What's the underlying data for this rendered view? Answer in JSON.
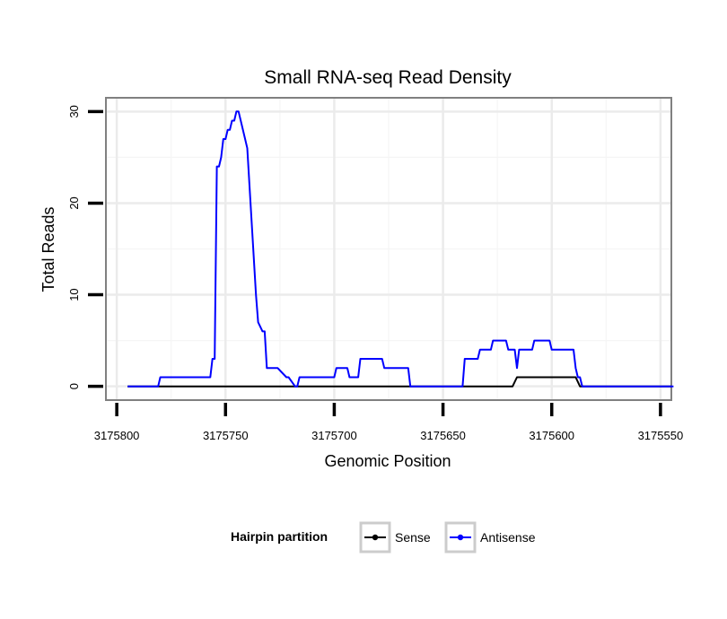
{
  "chart_data": {
    "type": "line",
    "title": "Small RNA-seq Read Density",
    "xlabel": "Genomic Position",
    "ylabel": "Total Reads",
    "x_reversed": true,
    "xlim": [
      3175805,
      3175545
    ],
    "ylim": [
      -1.5,
      31.5
    ],
    "x_ticks": [
      3175800,
      3175750,
      3175700,
      3175650,
      3175600,
      3175550
    ],
    "x_tick_labels": [
      "3175800",
      "3175750",
      "3175700",
      "3175650",
      "3175600",
      "3175550"
    ],
    "y_ticks": [
      0,
      10,
      20,
      30
    ],
    "y_tick_labels": [
      "0",
      "10",
      "20",
      "30"
    ],
    "grid": true,
    "legend": {
      "title": "Hairpin partition",
      "position": "bottom",
      "entries": [
        "Sense",
        "Antisense"
      ]
    },
    "series": [
      {
        "name": "Sense",
        "color": "#000000",
        "x": [
          3175795,
          3175618,
          3175616,
          3175589,
          3175587,
          3175545
        ],
        "y": [
          0,
          0,
          1,
          1,
          0,
          0
        ]
      },
      {
        "name": "Antisense",
        "color": "#0000ff",
        "x": [
          3175795,
          3175781,
          3175780,
          3175757,
          3175756,
          3175755,
          3175754,
          3175753,
          3175752,
          3175751,
          3175750,
          3175749,
          3175748,
          3175747,
          3175746,
          3175745,
          3175744,
          3175741,
          3175740,
          3175736,
          3175735,
          3175733,
          3175732,
          3175731,
          3175730,
          3175729,
          3175728,
          3175727,
          3175726,
          3175722,
          3175721,
          3175718,
          3175717,
          3175716,
          3175715,
          3175700,
          3175699,
          3175694,
          3175693,
          3175689,
          3175688,
          3175678,
          3175677,
          3175666,
          3175665,
          3175641,
          3175640,
          3175634,
          3175633,
          3175628,
          3175627,
          3175621,
          3175620,
          3175617,
          3175616,
          3175615,
          3175614,
          3175609,
          3175608,
          3175601,
          3175600,
          3175590,
          3175589,
          3175588,
          3175587,
          3175586,
          3175585,
          3175544
        ],
        "y": [
          0,
          0,
          1,
          1,
          3,
          3,
          24,
          24,
          25,
          27,
          27,
          28,
          28,
          29,
          29,
          30,
          30,
          27,
          26,
          10,
          7,
          6,
          6,
          2,
          2,
          2,
          2,
          2,
          2,
          1,
          1,
          0,
          0,
          1,
          1,
          1,
          2,
          2,
          1,
          1,
          3,
          3,
          2,
          2,
          0,
          0,
          3,
          3,
          4,
          4,
          5,
          5,
          4,
          4,
          2,
          4,
          4,
          4,
          5,
          5,
          4,
          4,
          2,
          1,
          1,
          0,
          0,
          0
        ]
      }
    ]
  }
}
